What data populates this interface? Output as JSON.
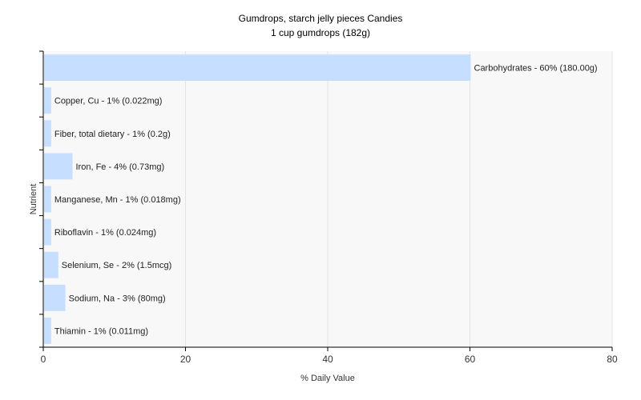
{
  "chart_data": {
    "type": "bar",
    "orientation": "horizontal",
    "title": "Gumdrops, starch jelly pieces Candies",
    "subtitle": "1 cup gumdrops (182g)",
    "xlabel": "% Daily Value",
    "ylabel": "Nutrient",
    "xlim": [
      0,
      80
    ],
    "x_ticks": [
      0,
      20,
      40,
      60,
      80
    ],
    "grid": true,
    "legend": "none",
    "bar_color": "#c6deff",
    "plot_background": "#f8f8f8",
    "categories": [
      "Carbohydrates",
      "Copper, Cu",
      "Fiber, total dietary",
      "Iron, Fe",
      "Manganese, Mn",
      "Riboflavin",
      "Selenium, Se",
      "Sodium, Na",
      "Thiamin"
    ],
    "values": [
      60,
      1,
      1,
      4,
      1,
      1,
      2,
      3,
      1
    ],
    "labels": [
      "Carbohydrates - 60% (180.00g)",
      "Copper, Cu - 1% (0.022mg)",
      "Fiber, total dietary - 1% (0.2g)",
      "Iron, Fe - 4% (0.73mg)",
      "Manganese, Mn - 1% (0.018mg)",
      "Riboflavin - 1% (0.024mg)",
      "Selenium, Se - 2% (1.5mcg)",
      "Sodium, Na - 3% (80mg)",
      "Thiamin - 1% (0.011mg)"
    ]
  }
}
